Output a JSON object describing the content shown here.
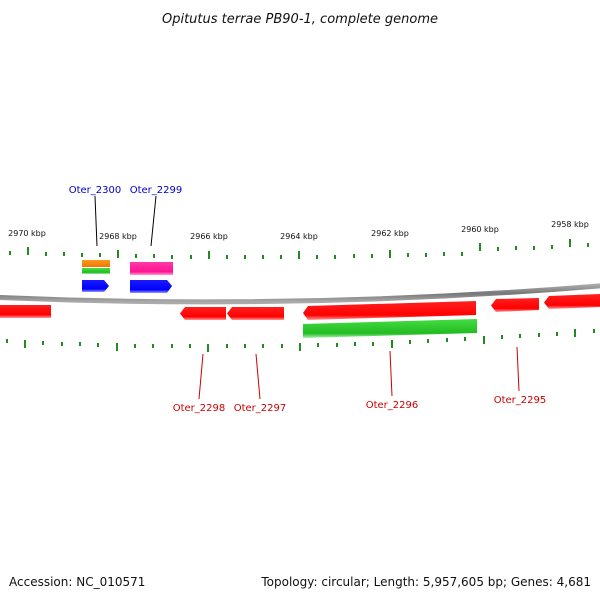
{
  "title": "Opitutus terrae PB90-1, complete genome",
  "accession": "Accession: NC_010571",
  "summary": "Topology: circular; Length: 5,957,605 bp; Genes: 4,681",
  "colors": {
    "backbone": "#888888",
    "tick": "#228b22",
    "forward_label": "#0000cc",
    "reverse_label": "#cc0000",
    "gene_red": "#ff0000",
    "gene_blue": "#0000ff",
    "gene_green": "#33cc33",
    "gene_orange": "#ff8800",
    "gene_magenta": "#ff1493"
  },
  "scale": {
    "unit": "kbp",
    "major_ticks": [
      {
        "label": "2970 kbp"
      },
      {
        "label": "2968 kbp"
      },
      {
        "label": "2966 kbp"
      },
      {
        "label": "2964 kbp"
      },
      {
        "label": "2962 kbp"
      },
      {
        "label": "2960 kbp"
      },
      {
        "label": "2958 kbp"
      }
    ]
  },
  "gene_labels": {
    "forward": [
      "Oter_2300",
      "Oter_2299"
    ],
    "reverse": [
      "Oter_2298",
      "Oter_2297",
      "Oter_2296",
      "Oter_2295"
    ]
  }
}
